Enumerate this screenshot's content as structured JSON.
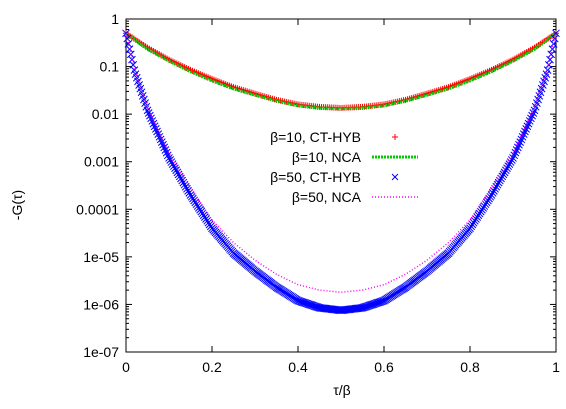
{
  "chart_data": {
    "type": "scatter",
    "title": "",
    "xlabel": "τ/β",
    "ylabel": "-G(τ)",
    "xlim": [
      0,
      1
    ],
    "ylim": [
      1e-07,
      1
    ],
    "yscale": "log",
    "grid": false,
    "legend_position": "center",
    "x_ticks": [
      "0",
      "0.2",
      "0.4",
      "0.6",
      "0.8",
      "1"
    ],
    "y_ticks": [
      "1",
      "0.1",
      "0.01",
      "0.001",
      "0.0001",
      "1e-05",
      "1e-06",
      "1e-07"
    ],
    "series": [
      {
        "name": "β=10, CT-HYB",
        "style": "plus",
        "color": "#ff0000",
        "x": [
          0,
          0.05,
          0.1,
          0.15,
          0.2,
          0.25,
          0.3,
          0.35,
          0.4,
          0.45,
          0.5,
          0.55,
          0.6,
          0.65,
          0.7,
          0.75,
          0.8,
          0.85,
          0.9,
          0.95,
          1
        ],
        "y": [
          0.5,
          0.25,
          0.14,
          0.085,
          0.055,
          0.037,
          0.027,
          0.02,
          0.016,
          0.0142,
          0.0135,
          0.0142,
          0.016,
          0.02,
          0.027,
          0.037,
          0.055,
          0.085,
          0.14,
          0.25,
          0.5
        ]
      },
      {
        "name": "β=10, NCA",
        "style": "dashed-line",
        "color": "#00cc00",
        "x": [
          0,
          0.05,
          0.1,
          0.15,
          0.2,
          0.25,
          0.3,
          0.35,
          0.4,
          0.45,
          0.5,
          0.55,
          0.6,
          0.65,
          0.7,
          0.75,
          0.8,
          0.85,
          0.9,
          0.95,
          1
        ],
        "y": [
          0.5,
          0.23,
          0.13,
          0.078,
          0.05,
          0.034,
          0.025,
          0.019,
          0.015,
          0.0135,
          0.013,
          0.0135,
          0.015,
          0.019,
          0.025,
          0.034,
          0.05,
          0.078,
          0.13,
          0.23,
          0.5
        ]
      },
      {
        "name": "β=50, CT-HYB",
        "style": "cross",
        "color": "#0000ff",
        "x": [
          0,
          0.02,
          0.05,
          0.1,
          0.15,
          0.2,
          0.25,
          0.3,
          0.35,
          0.4,
          0.45,
          0.5,
          0.55,
          0.6,
          0.65,
          0.7,
          0.75,
          0.8,
          0.85,
          0.9,
          0.95,
          0.98,
          1
        ],
        "y": [
          0.5,
          0.08,
          0.012,
          0.0012,
          0.0002,
          4e-05,
          1.2e-05,
          5e-06,
          2.3e-06,
          1.2e-06,
          8.5e-07,
          7.5e-07,
          8.5e-07,
          1.2e-06,
          2.3e-06,
          5e-06,
          1.2e-05,
          4e-05,
          0.0002,
          0.0012,
          0.012,
          0.08,
          0.5
        ]
      },
      {
        "name": "β=50, NCA",
        "style": "dotted-line",
        "color": "#ff00ff",
        "x": [
          0,
          0.02,
          0.05,
          0.1,
          0.15,
          0.2,
          0.25,
          0.3,
          0.35,
          0.4,
          0.45,
          0.5,
          0.55,
          0.6,
          0.65,
          0.7,
          0.75,
          0.8,
          0.85,
          0.9,
          0.95,
          0.98,
          1
        ],
        "y": [
          0.5,
          0.09,
          0.014,
          0.0015,
          0.00028,
          6e-05,
          2e-05,
          8.5e-06,
          4.3e-06,
          2.6e-06,
          2e-06,
          1.8e-06,
          2e-06,
          2.6e-06,
          4.3e-06,
          8.5e-06,
          2e-05,
          6e-05,
          0.00028,
          0.0015,
          0.014,
          0.09,
          0.5
        ]
      }
    ]
  }
}
